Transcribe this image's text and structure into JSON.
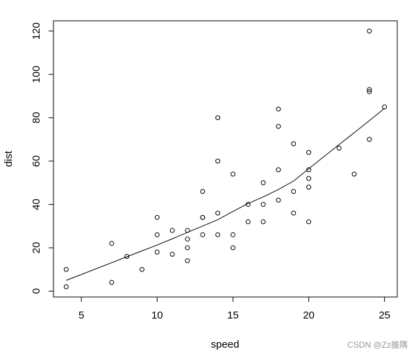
{
  "chart_data": {
    "type": "scatter",
    "x_label": "speed",
    "y_label": "dist",
    "xlim": [
      3.16,
      25.84
    ],
    "ylim": [
      -2.72,
      124.72
    ],
    "xticks": [
      5,
      10,
      15,
      20,
      25
    ],
    "yticks": [
      0,
      20,
      40,
      60,
      80,
      100,
      120
    ],
    "watermark": "CSDN @Zz雒隅",
    "series": [
      {
        "type": "scatter",
        "color": "#000000",
        "x": [
          4,
          4,
          7,
          7,
          8,
          9,
          10,
          10,
          10,
          11,
          11,
          12,
          12,
          12,
          12,
          13,
          13,
          13,
          13,
          14,
          14,
          14,
          14,
          15,
          15,
          15,
          16,
          16,
          17,
          17,
          17,
          18,
          18,
          18,
          18,
          19,
          19,
          19,
          20,
          20,
          20,
          20,
          20,
          22,
          23,
          24,
          24,
          24,
          24,
          25
        ],
        "values": [
          2,
          10,
          4,
          22,
          16,
          10,
          18,
          26,
          34,
          17,
          28,
          14,
          20,
          24,
          28,
          26,
          34,
          34,
          46,
          26,
          36,
          60,
          80,
          20,
          26,
          54,
          32,
          40,
          32,
          40,
          50,
          42,
          56,
          76,
          84,
          36,
          46,
          68,
          32,
          48,
          52,
          56,
          64,
          66,
          54,
          70,
          92,
          93,
          120,
          85
        ]
      },
      {
        "type": "line",
        "color": "#000000",
        "x": [
          4,
          7,
          8,
          9,
          10,
          11,
          12,
          13,
          14,
          15,
          16,
          17,
          18,
          19,
          20,
          22,
          23,
          24,
          25
        ],
        "values": [
          4.97,
          13.12,
          15.86,
          18.58,
          21.28,
          24.13,
          27.12,
          30.03,
          32.96,
          36.76,
          40.44,
          43.46,
          46.89,
          50.79,
          56.49,
          67.59,
          73.08,
          78.64,
          84.33
        ]
      }
    ]
  }
}
